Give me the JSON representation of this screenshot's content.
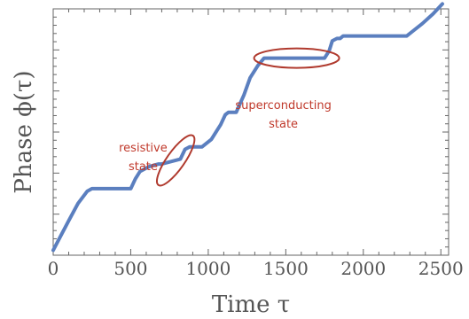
{
  "chart_data": {
    "type": "line",
    "xlabel": "Time τ",
    "ylabel": "Phase ϕ(τ)",
    "xlim": [
      0,
      2550
    ],
    "ylim": [
      0,
      1
    ],
    "x_ticks": [
      0,
      500,
      1000,
      1500,
      2000,
      2500
    ],
    "y_tick_labels": "none",
    "grid": false,
    "color": "#5b7fbf",
    "series": [
      {
        "x": [
          0,
          50,
          100,
          160,
          220,
          250,
          500,
          530,
          560,
          620,
          680,
          700,
          820,
          850,
          880,
          960,
          1020,
          1060,
          1080,
          1110,
          1130,
          1180,
          1230,
          1270,
          1320,
          1360,
          1380,
          1750,
          1780,
          1800,
          1830,
          1850,
          1870,
          2280,
          2320,
          2380,
          2450,
          2510
        ],
        "y": [
          0.02,
          0.08,
          0.14,
          0.21,
          0.26,
          0.27,
          0.27,
          0.31,
          0.34,
          0.36,
          0.37,
          0.37,
          0.39,
          0.43,
          0.44,
          0.44,
          0.47,
          0.51,
          0.53,
          0.57,
          0.58,
          0.58,
          0.65,
          0.72,
          0.77,
          0.8,
          0.8,
          0.8,
          0.83,
          0.87,
          0.88,
          0.88,
          0.89,
          0.89,
          0.91,
          0.94,
          0.98,
          1.02
        ]
      }
    ],
    "annotations": [
      {
        "text": [
          "resistive",
          "state"
        ],
        "ellipse_center": [
          790,
          0.385
        ],
        "label_at": [
          580,
          0.45
        ]
      },
      {
        "text": [
          "superconducting",
          "state"
        ],
        "ellipse_center": [
          1570,
          0.8
        ],
        "label_at": [
          1570,
          0.62
        ]
      }
    ]
  }
}
